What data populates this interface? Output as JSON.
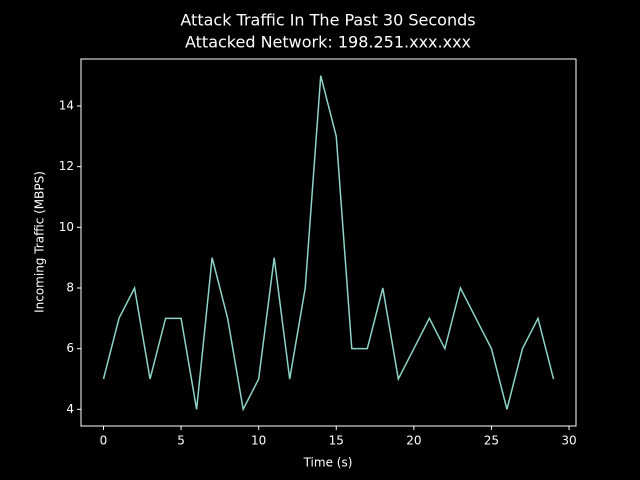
{
  "chart_data": {
    "type": "line",
    "title": "Attack Traffic In The Past 30 Seconds",
    "subtitle": "Attacked Network: 198.251.xxx.xxx",
    "x_label": "Time (s)",
    "y_label": "Incoming Traffic (MBPS)",
    "x": [
      0,
      1,
      2,
      3,
      4,
      5,
      6,
      7,
      8,
      9,
      10,
      11,
      12,
      13,
      14,
      15,
      16,
      17,
      18,
      19,
      20,
      21,
      22,
      23,
      24,
      25,
      26,
      27,
      28,
      29
    ],
    "series": [
      {
        "name": "Traffic",
        "color": "#8dd3c7",
        "values": [
          5,
          7,
          8,
          5,
          7,
          7,
          4,
          9,
          7,
          4,
          5,
          9,
          5,
          8,
          15,
          13,
          6,
          6,
          8,
          5,
          6,
          7,
          6,
          8,
          7,
          6,
          4,
          6,
          7,
          5
        ]
      }
    ],
    "xlim": [
      -1.45,
      30.45
    ],
    "xticks": [
      0,
      5,
      10,
      15,
      20,
      25,
      30
    ],
    "ylim": [
      3.45,
      15.55
    ],
    "yticks": [
      4,
      6,
      8,
      10,
      12,
      14
    ],
    "grid": false
  }
}
